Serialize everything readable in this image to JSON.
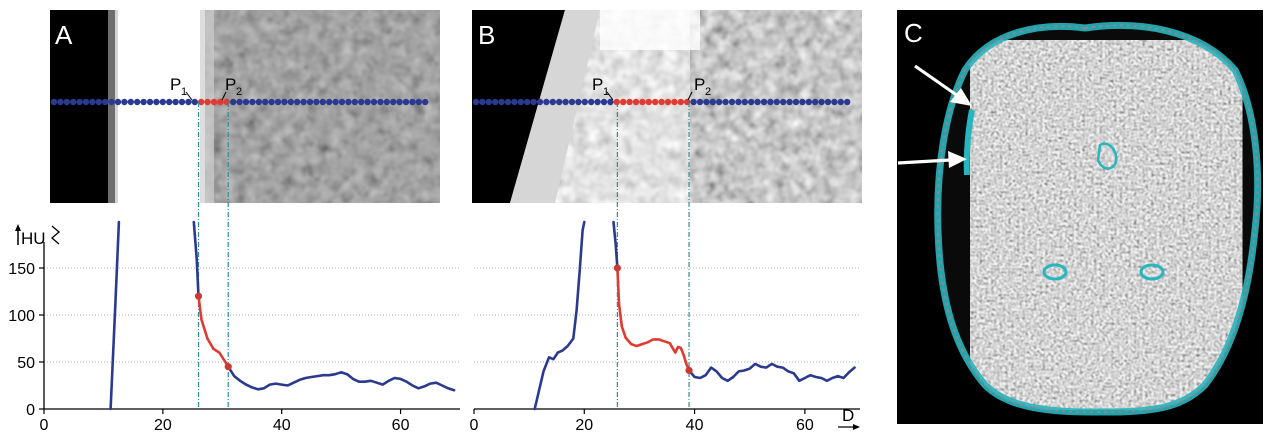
{
  "panels": {
    "a_label": "A",
    "b_label": "B",
    "c_label": "C"
  },
  "points": {
    "p1": "P",
    "p2": "P",
    "p1_sub": "1",
    "p2_sub": "2"
  },
  "axes": {
    "y_unit": "HU",
    "x_unit": "D"
  },
  "colors": {
    "blue": "#2b3a8f",
    "red": "#e23a30",
    "teal": "#2a8f8f",
    "cyan": "#27b5bf",
    "grid": "#9a9a9a",
    "brain_bg": "#000000"
  },
  "chart_data": [
    {
      "type": "line",
      "panel": "A",
      "xlabel": "D",
      "ylabel": "HU",
      "xlim": [
        0,
        70
      ],
      "ylim": [
        0,
        170
      ],
      "xticks": [
        0,
        20,
        40,
        60
      ],
      "yticks": [
        0,
        50,
        100,
        150
      ],
      "grid": "horizontal dotted at 50, 100, 150",
      "markers": {
        "p1_x": 26,
        "p2_x": 31
      },
      "series": [
        {
          "segment": "rise",
          "color": "blue",
          "x": [
            11.2,
            12.0,
            12.6
          ],
          "y": [
            0,
            110,
            200
          ]
        },
        {
          "segment": "fall",
          "color": "blue",
          "x": [
            25.2,
            25.7,
            26.0
          ],
          "y": [
            200,
            160,
            120
          ]
        },
        {
          "segment": "transition",
          "color": "red",
          "x": [
            26.0,
            26.5,
            27.5,
            28.5,
            29.5,
            30.3,
            31.0
          ],
          "y": [
            120,
            95,
            75,
            64,
            60,
            52,
            45
          ]
        },
        {
          "segment": "tissue",
          "color": "blue",
          "x": [
            31,
            32,
            33,
            34,
            35,
            36,
            37,
            38,
            39,
            40,
            41,
            42,
            43,
            44,
            45,
            46,
            47,
            48,
            49,
            50,
            51,
            52,
            53,
            54,
            55,
            56,
            57,
            58,
            59,
            60,
            61,
            62,
            63,
            64,
            65,
            66,
            67,
            68,
            69
          ],
          "y": [
            45,
            35,
            30,
            26,
            23,
            21,
            22,
            26,
            27,
            26,
            25,
            28,
            31,
            33,
            34,
            35,
            36,
            36,
            37,
            39,
            37,
            32,
            29,
            29,
            30,
            28,
            26,
            30,
            33,
            32,
            29,
            25,
            22,
            24,
            27,
            28,
            25,
            22,
            20
          ]
        }
      ],
      "highlight_points": [
        {
          "x": 26,
          "y": 120
        },
        {
          "x": 31,
          "y": 45
        }
      ]
    },
    {
      "type": "line",
      "panel": "B",
      "xlabel": "D",
      "ylabel": "HU",
      "xlim": [
        0,
        70
      ],
      "ylim": [
        0,
        170
      ],
      "xticks": [
        0,
        20,
        40,
        60
      ],
      "yticks": [
        0,
        50,
        100,
        150
      ],
      "grid": "horizontal dotted at 50, 100, 150",
      "markers": {
        "p1_x": 26,
        "p2_x": 39
      },
      "series": [
        {
          "segment": "rise",
          "color": "blue",
          "x": [
            11.0,
            11.8,
            12.6,
            13.6,
            14.4,
            15.2,
            16.0,
            17.0,
            18.0,
            18.6,
            19.2,
            19.7,
            20.0
          ],
          "y": [
            0,
            20,
            40,
            55,
            53,
            60,
            62,
            67,
            75,
            105,
            150,
            190,
            200
          ]
        },
        {
          "segment": "fall",
          "color": "blue",
          "x": [
            25.3,
            25.7,
            26.0
          ],
          "y": [
            200,
            175,
            150
          ]
        },
        {
          "segment": "transition",
          "color": "red",
          "x": [
            26.0,
            26.3,
            26.8,
            27.5,
            28.5,
            29.5,
            30.5,
            31.5,
            32.5,
            33.5,
            34.5,
            35.5,
            36.0,
            36.5,
            37.0,
            37.5,
            38.0,
            38.5,
            39.0
          ],
          "y": [
            150,
            112,
            88,
            76,
            69,
            67,
            69,
            71,
            74,
            74,
            72,
            70,
            65,
            60,
            66,
            65,
            58,
            48,
            41
          ]
        },
        {
          "segment": "tissue",
          "color": "blue",
          "x": [
            39,
            40,
            41,
            42,
            43,
            44,
            45,
            46,
            47,
            48,
            49,
            50,
            51,
            52,
            53,
            54,
            55,
            56,
            57,
            58,
            59,
            60,
            61,
            62,
            63,
            64,
            65,
            66,
            67,
            68,
            69
          ],
          "y": [
            41,
            34,
            33,
            36,
            44,
            40,
            33,
            30,
            34,
            40,
            41,
            43,
            48,
            45,
            44,
            48,
            45,
            44,
            40,
            38,
            30,
            33,
            36,
            34,
            33,
            30,
            33,
            35,
            33,
            39,
            44
          ]
        }
      ],
      "highlight_points": [
        {
          "x": 26,
          "y": 150
        },
        {
          "x": 39,
          "y": 41
        }
      ]
    }
  ]
}
